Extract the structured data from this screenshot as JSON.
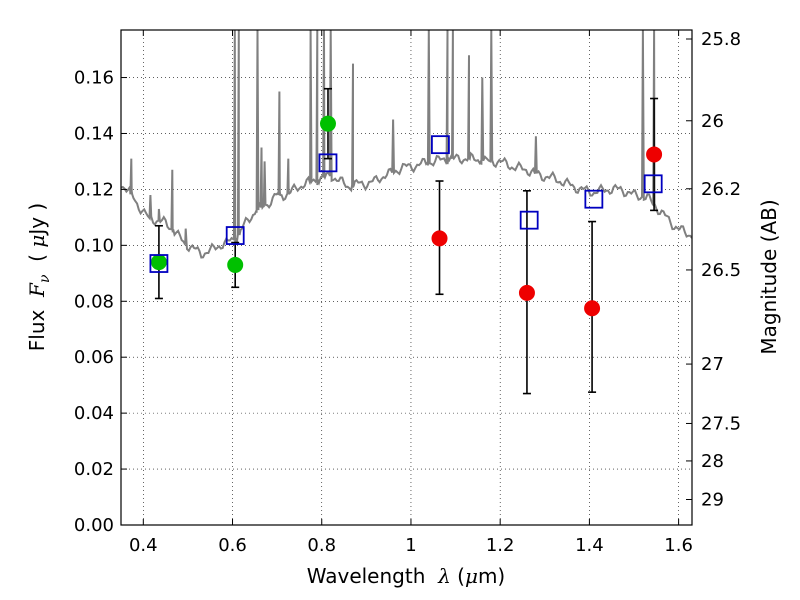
{
  "chart_data": {
    "type": "scatter",
    "xlabel": "Wavelength  λ (μm)",
    "ylabel": "Flux  F_ν  ( μJy )",
    "y2label": "Magnitude (AB)",
    "xlim": [
      0.35,
      1.63
    ],
    "ylim": [
      0.0,
      0.177
    ],
    "grid": true,
    "x_ticks": [
      0.4,
      0.6,
      0.8,
      1.0,
      1.2,
      1.4,
      1.6
    ],
    "x_tick_labels": [
      "0.4",
      "0.6",
      "0.8",
      "1",
      "1.2",
      "1.4",
      "1.6"
    ],
    "y_ticks": [
      0.0,
      0.02,
      0.04,
      0.06,
      0.08,
      0.1,
      0.12,
      0.14,
      0.16
    ],
    "y_tick_labels": [
      "0.00",
      "0.02",
      "0.04",
      "0.06",
      "0.08",
      "0.10",
      "0.12",
      "0.14",
      "0.16"
    ],
    "y2_ticks": [
      25.8,
      26,
      26.2,
      26.5,
      27,
      27.5,
      28,
      29
    ],
    "y2_tick_labels": [
      "25.8",
      "26",
      "26.2",
      "26.5",
      "27",
      "27.5",
      "28",
      "29"
    ],
    "series": [
      {
        "marker": "circle",
        "color": "#00c000",
        "points": [
          {
            "x": 0.435,
            "y": 0.094,
            "yerr": [
              0.081,
              0.107
            ]
          },
          {
            "x": 0.606,
            "y": 0.093,
            "yerr": [
              0.085,
              0.101
            ]
          },
          {
            "x": 0.814,
            "y": 0.1435,
            "yerr": [
              0.131,
              0.156
            ]
          }
        ]
      },
      {
        "marker": "circle",
        "color": "#ee0000",
        "points": [
          {
            "x": 1.064,
            "y": 0.1025,
            "yerr": [
              0.0825,
              0.123
            ]
          },
          {
            "x": 1.26,
            "y": 0.083,
            "yerr": [
              0.047,
              0.1195
            ]
          },
          {
            "x": 1.406,
            "y": 0.0775,
            "yerr": [
              0.0475,
              0.1085
            ]
          },
          {
            "x": 1.545,
            "y": 0.1325,
            "yerr": [
              0.1125,
              0.1525
            ]
          }
        ]
      },
      {
        "marker": "square-open",
        "color": "#0000c0",
        "points": [
          {
            "x": 0.435,
            "y": 0.0935
          },
          {
            "x": 0.606,
            "y": 0.1035
          },
          {
            "x": 0.814,
            "y": 0.1295
          },
          {
            "x": 1.066,
            "y": 0.136
          },
          {
            "x": 1.265,
            "y": 0.109
          },
          {
            "x": 1.41,
            "y": 0.1165
          },
          {
            "x": 1.543,
            "y": 0.122
          }
        ]
      }
    ],
    "model_spectrum": {
      "color": "#808080",
      "continuum": [
        [
          0.35,
          0.122
        ],
        [
          0.37,
          0.119
        ],
        [
          0.39,
          0.114
        ],
        [
          0.41,
          0.11
        ],
        [
          0.43,
          0.109
        ],
        [
          0.45,
          0.108
        ],
        [
          0.47,
          0.105
        ],
        [
          0.49,
          0.101
        ],
        [
          0.51,
          0.099
        ],
        [
          0.53,
          0.097
        ],
        [
          0.55,
          0.098
        ],
        [
          0.57,
          0.1
        ],
        [
          0.59,
          0.101
        ],
        [
          0.61,
          0.103
        ],
        [
          0.63,
          0.108
        ],
        [
          0.65,
          0.112
        ],
        [
          0.68,
          0.115
        ],
        [
          0.7,
          0.118
        ],
        [
          0.72,
          0.118
        ],
        [
          0.74,
          0.12
        ],
        [
          0.76,
          0.122
        ],
        [
          0.78,
          0.123
        ],
        [
          0.8,
          0.124
        ],
        [
          0.82,
          0.125
        ],
        [
          0.84,
          0.123
        ],
        [
          0.86,
          0.121
        ],
        [
          0.88,
          0.122
        ],
        [
          0.9,
          0.122
        ],
        [
          0.92,
          0.123
        ],
        [
          0.94,
          0.125
        ],
        [
          0.96,
          0.126
        ],
        [
          0.98,
          0.128
        ],
        [
          1.0,
          0.128
        ],
        [
          1.02,
          0.129
        ],
        [
          1.05,
          0.13
        ],
        [
          1.08,
          0.131
        ],
        [
          1.11,
          0.131
        ],
        [
          1.14,
          0.131
        ],
        [
          1.17,
          0.13
        ],
        [
          1.2,
          0.13
        ],
        [
          1.23,
          0.128
        ],
        [
          1.26,
          0.127
        ],
        [
          1.29,
          0.125
        ],
        [
          1.32,
          0.124
        ],
        [
          1.35,
          0.122
        ],
        [
          1.38,
          0.12
        ],
        [
          1.41,
          0.119
        ],
        [
          1.44,
          0.12
        ],
        [
          1.47,
          0.12
        ],
        [
          1.5,
          0.118
        ],
        [
          1.53,
          0.117
        ],
        [
          1.56,
          0.112
        ],
        [
          1.59,
          0.107
        ],
        [
          1.62,
          0.104
        ],
        [
          1.63,
          0.104
        ]
      ],
      "lines": [
        {
          "x": 0.373,
          "h": 0.131
        },
        {
          "x": 0.416,
          "h": 0.118
        },
        {
          "x": 0.435,
          "h": 0.113
        },
        {
          "x": 0.465,
          "h": 0.127
        },
        {
          "x": 0.495,
          "h": 0.106
        },
        {
          "x": 0.605,
          "h": 0.177
        },
        {
          "x": 0.614,
          "h": 0.177
        },
        {
          "x": 0.656,
          "h": 0.177
        },
        {
          "x": 0.665,
          "h": 0.135
        },
        {
          "x": 0.672,
          "h": 0.13
        },
        {
          "x": 0.705,
          "h": 0.155
        },
        {
          "x": 0.725,
          "h": 0.131
        },
        {
          "x": 0.775,
          "h": 0.177
        },
        {
          "x": 0.79,
          "h": 0.177
        },
        {
          "x": 0.805,
          "h": 0.177
        },
        {
          "x": 0.82,
          "h": 0.177
        },
        {
          "x": 0.87,
          "h": 0.165
        },
        {
          "x": 0.96,
          "h": 0.145
        },
        {
          "x": 1.04,
          "h": 0.177
        },
        {
          "x": 1.082,
          "h": 0.177
        },
        {
          "x": 1.094,
          "h": 0.177
        },
        {
          "x": 1.13,
          "h": 0.168
        },
        {
          "x": 1.16,
          "h": 0.16
        },
        {
          "x": 1.18,
          "h": 0.177
        },
        {
          "x": 1.28,
          "h": 0.139
        },
        {
          "x": 1.52,
          "h": 0.177
        },
        {
          "x": 1.545,
          "h": 0.177
        }
      ]
    }
  }
}
